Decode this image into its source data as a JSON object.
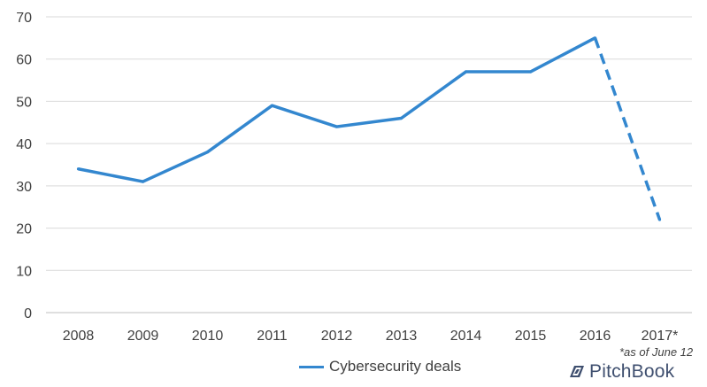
{
  "chart_data": {
    "type": "line",
    "title": "",
    "xlabel": "",
    "ylabel": "",
    "categories": [
      "2008",
      "2009",
      "2010",
      "2011",
      "2012",
      "2013",
      "2014",
      "2015",
      "2016",
      "2017*"
    ],
    "series": [
      {
        "name": "Cybersecurity deals",
        "values": [
          34,
          31,
          38,
          49,
          44,
          46,
          57,
          57,
          65,
          22
        ],
        "color": "#3387cf",
        "dashed_from_index": 8
      }
    ],
    "ylim": [
      0,
      70
    ],
    "yticks": [
      0,
      10,
      20,
      30,
      40,
      50,
      60,
      70
    ],
    "grid": "horizontal",
    "legend": "bottom"
  },
  "legend": {
    "label": "Cybersecurity deals"
  },
  "footnote": "*as of June 12",
  "brand": {
    "name": "PitchBook",
    "icon": "pitchbook-logo-icon"
  },
  "colors": {
    "series": "#3387cf",
    "grid": "#d9d9d9",
    "text": "#404040",
    "brand": "#3f4f6f"
  }
}
